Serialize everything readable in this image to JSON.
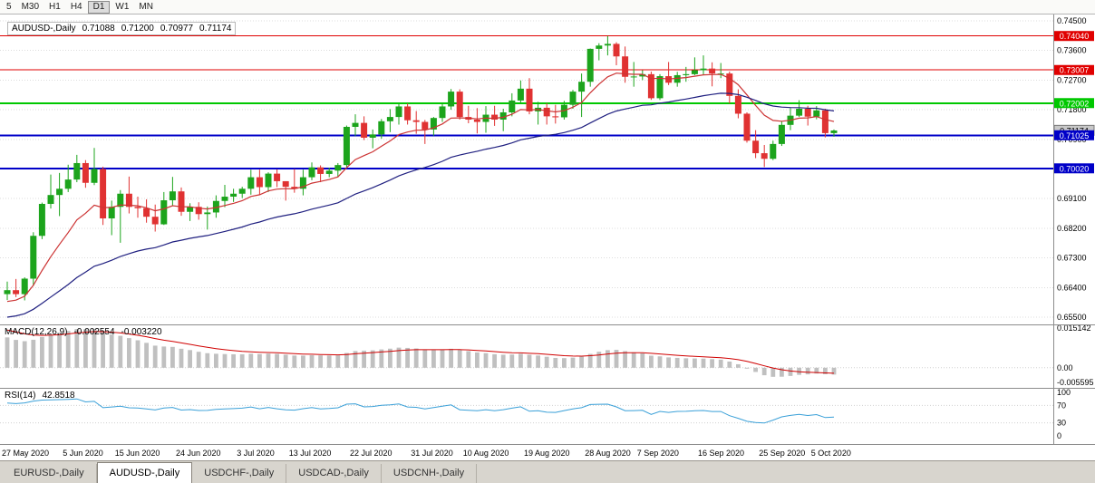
{
  "toolbar": {
    "timeframes": [
      "5",
      "M30",
      "H1",
      "H4",
      "D1",
      "W1",
      "MN"
    ],
    "active": "D1"
  },
  "chart_header": {
    "symbol": "AUDUSD-,Daily",
    "open": "0.71088",
    "high": "0.71200",
    "low": "0.70977",
    "close": "0.71174"
  },
  "price_axis": {
    "ticks": [
      {
        "label": "0.74500",
        "value": 0.745
      },
      {
        "label": "0.73600",
        "value": 0.736
      },
      {
        "label": "0.72700",
        "value": 0.727
      },
      {
        "label": "0.71800",
        "value": 0.718
      },
      {
        "label": "0.70900",
        "value": 0.709
      },
      {
        "label": "0.70000",
        "value": 0.7
      },
      {
        "label": "0.69100",
        "value": 0.691
      },
      {
        "label": "0.68200",
        "value": 0.682
      },
      {
        "label": "0.67300",
        "value": 0.673
      },
      {
        "label": "0.66400",
        "value": 0.664
      },
      {
        "label": "0.65500",
        "value": 0.655
      }
    ]
  },
  "levels": [
    {
      "label": "0.74040",
      "value": 0.7404,
      "color": "#e00000",
      "width": 1
    },
    {
      "label": "0.73007",
      "value": 0.73007,
      "color": "#e00000",
      "width": 1
    },
    {
      "label": "0.72002",
      "value": 0.72002,
      "color": "#00c800",
      "width": 2
    },
    {
      "label": "0.71025",
      "value": 0.71025,
      "color": "#0000c8",
      "width": 2
    },
    {
      "label": "0.70020",
      "value": 0.7002,
      "color": "#0000c8",
      "width": 2
    }
  ],
  "current_price": {
    "label": "0.71174",
    "value": 0.71174,
    "bg": "#c8c8c8",
    "fg": "#000000"
  },
  "indicators": {
    "macd": {
      "header": {
        "label": "MACD(12,26,9)",
        "main": "-0.002554",
        "signal": "-0.003220"
      },
      "axis": [
        {
          "label": "0.015142",
          "value": 0.015142
        },
        {
          "label": "0.00",
          "value": 0
        },
        {
          "label": "-0.005595",
          "value": -0.005595
        }
      ],
      "histogram_color": "#c0c0c0",
      "signal_color": "#d00000"
    },
    "rsi": {
      "header": {
        "label": "RSI(14)",
        "value": "42.8518"
      },
      "axis": [
        {
          "label": "100",
          "value": 100
        },
        {
          "label": "70",
          "value": 70
        },
        {
          "label": "30",
          "value": 30
        },
        {
          "label": "0",
          "value": 0
        }
      ],
      "levels": [
        70,
        30
      ],
      "line_color": "#3aa0d8"
    }
  },
  "date_axis": [
    {
      "label": "27 May 2020",
      "index": 0
    },
    {
      "label": "5 Jun 2020",
      "index": 7
    },
    {
      "label": "15 Jun 2020",
      "index": 13
    },
    {
      "label": "24 Jun 2020",
      "index": 20
    },
    {
      "label": "3 Jul 2020",
      "index": 27
    },
    {
      "label": "13 Jul 2020",
      "index": 33
    },
    {
      "label": "22 Jul 2020",
      "index": 40
    },
    {
      "label": "31 Jul 2020",
      "index": 47
    },
    {
      "label": "10 Aug 2020",
      "index": 53
    },
    {
      "label": "19 Aug 2020",
      "index": 60
    },
    {
      "label": "28 Aug 2020",
      "index": 67
    },
    {
      "label": "7 Sep 2020",
      "index": 73
    },
    {
      "label": "16 Sep 2020",
      "index": 80
    },
    {
      "label": "25 Sep 2020",
      "index": 87
    },
    {
      "label": "5 Oct 2020",
      "index": 93
    }
  ],
  "tabbar": {
    "tabs": [
      {
        "label": "EURUSD-,Daily",
        "active": false
      },
      {
        "label": "AUDUSD-,Daily",
        "active": true
      },
      {
        "label": "USDCHF-,Daily",
        "active": false
      },
      {
        "label": "USDCAD-,Daily",
        "active": false
      },
      {
        "label": "USDCNH-,Daily",
        "active": false
      }
    ]
  },
  "chart_data": {
    "type": "candlestick",
    "symbol": "AUDUSD",
    "timeframe": "Daily",
    "y_range": [
      0.6531,
      0.7469
    ],
    "up_color": "#1ca41c",
    "down_color": "#e03232",
    "ma_fast_color": "#cc3333",
    "ma_slow_color": "#202080",
    "candles": [
      [
        0.662,
        0.6658,
        0.6602,
        0.6632
      ],
      [
        0.6632,
        0.6666,
        0.6611,
        0.662
      ],
      [
        0.662,
        0.6671,
        0.6601,
        0.6667
      ],
      [
        0.6667,
        0.6808,
        0.6645,
        0.6797
      ],
      [
        0.6797,
        0.6898,
        0.6787,
        0.6894
      ],
      [
        0.6894,
        0.6983,
        0.688,
        0.6921
      ],
      [
        0.6921,
        0.6988,
        0.6857,
        0.694
      ],
      [
        0.694,
        0.7013,
        0.693,
        0.6968
      ],
      [
        0.6968,
        0.7043,
        0.696,
        0.7018
      ],
      [
        0.7018,
        0.7027,
        0.6943,
        0.6958
      ],
      [
        0.6958,
        0.7064,
        0.6951,
        0.7
      ],
      [
        0.7,
        0.7007,
        0.683,
        0.685
      ],
      [
        0.685,
        0.6904,
        0.6799,
        0.6885
      ],
      [
        0.6885,
        0.6936,
        0.6776,
        0.6925
      ],
      [
        0.6925,
        0.6977,
        0.6865,
        0.6885
      ],
      [
        0.6885,
        0.6916,
        0.6852,
        0.6881
      ],
      [
        0.6881,
        0.6908,
        0.6837,
        0.6855
      ],
      [
        0.6855,
        0.6892,
        0.681,
        0.6832
      ],
      [
        0.6832,
        0.693,
        0.683,
        0.6905
      ],
      [
        0.6905,
        0.6976,
        0.689,
        0.6932
      ],
      [
        0.6932,
        0.6944,
        0.6858,
        0.687
      ],
      [
        0.687,
        0.6896,
        0.6842,
        0.6885
      ],
      [
        0.6885,
        0.6899,
        0.6846,
        0.6863
      ],
      [
        0.6863,
        0.6886,
        0.6816,
        0.6868
      ],
      [
        0.6868,
        0.692,
        0.6852,
        0.6903
      ],
      [
        0.6903,
        0.6952,
        0.6884,
        0.6916
      ],
      [
        0.6916,
        0.694,
        0.69,
        0.6925
      ],
      [
        0.6925,
        0.6946,
        0.6912,
        0.694
      ],
      [
        0.694,
        0.6998,
        0.6922,
        0.6975
      ],
      [
        0.6975,
        0.6998,
        0.6921,
        0.6945
      ],
      [
        0.6945,
        0.699,
        0.693,
        0.6986
      ],
      [
        0.6986,
        0.6999,
        0.6945,
        0.6963
      ],
      [
        0.6963,
        0.6963,
        0.6904,
        0.6946
      ],
      [
        0.6946,
        0.7,
        0.6928,
        0.694
      ],
      [
        0.694,
        0.6998,
        0.692,
        0.6975
      ],
      [
        0.6975,
        0.702,
        0.6966,
        0.7005
      ],
      [
        0.7005,
        0.7011,
        0.696,
        0.6985
      ],
      [
        0.6985,
        0.7004,
        0.6975,
        0.6995
      ],
      [
        0.6995,
        0.7018,
        0.6975,
        0.7012
      ],
      [
        0.7012,
        0.7132,
        0.7005,
        0.7128
      ],
      [
        0.7128,
        0.7166,
        0.71,
        0.714
      ],
      [
        0.714,
        0.716,
        0.7088,
        0.7095
      ],
      [
        0.7095,
        0.712,
        0.7063,
        0.7105
      ],
      [
        0.7105,
        0.7152,
        0.7092,
        0.7145
      ],
      [
        0.7145,
        0.7182,
        0.7112,
        0.7158
      ],
      [
        0.7158,
        0.7197,
        0.7135,
        0.719
      ],
      [
        0.719,
        0.7199,
        0.7135,
        0.7148
      ],
      [
        0.7148,
        0.7176,
        0.7107,
        0.7143
      ],
      [
        0.7143,
        0.7149,
        0.7076,
        0.712
      ],
      [
        0.712,
        0.7158,
        0.7101,
        0.7155
      ],
      [
        0.7155,
        0.7199,
        0.7143,
        0.719
      ],
      [
        0.719,
        0.7243,
        0.718,
        0.7235
      ],
      [
        0.7235,
        0.7242,
        0.715,
        0.7158
      ],
      [
        0.7158,
        0.7192,
        0.7139,
        0.715
      ],
      [
        0.715,
        0.7185,
        0.7108,
        0.7143
      ],
      [
        0.7143,
        0.7191,
        0.711,
        0.7165
      ],
      [
        0.7165,
        0.7192,
        0.7131,
        0.715
      ],
      [
        0.715,
        0.7183,
        0.7115,
        0.7172
      ],
      [
        0.7172,
        0.723,
        0.716,
        0.7208
      ],
      [
        0.7208,
        0.7269,
        0.7199,
        0.7244
      ],
      [
        0.7244,
        0.7276,
        0.7166,
        0.7175
      ],
      [
        0.7175,
        0.7204,
        0.7135,
        0.7186
      ],
      [
        0.7186,
        0.72,
        0.7135,
        0.716
      ],
      [
        0.716,
        0.7195,
        0.7138,
        0.7157
      ],
      [
        0.7157,
        0.7207,
        0.715,
        0.7195
      ],
      [
        0.7195,
        0.724,
        0.7183,
        0.7235
      ],
      [
        0.7235,
        0.729,
        0.7158,
        0.7265
      ],
      [
        0.7265,
        0.7366,
        0.725,
        0.7365
      ],
      [
        0.7365,
        0.7382,
        0.733,
        0.7375
      ],
      [
        0.7375,
        0.7404,
        0.7345,
        0.738
      ],
      [
        0.738,
        0.7385,
        0.7315,
        0.7342
      ],
      [
        0.7342,
        0.7372,
        0.7262,
        0.728
      ],
      [
        0.728,
        0.7325,
        0.725,
        0.7281
      ],
      [
        0.7281,
        0.73,
        0.727,
        0.7288
      ],
      [
        0.7288,
        0.7296,
        0.721,
        0.7215
      ],
      [
        0.7215,
        0.7288,
        0.721,
        0.7282
      ],
      [
        0.7282,
        0.7325,
        0.7255,
        0.7262
      ],
      [
        0.7262,
        0.7295,
        0.725,
        0.7285
      ],
      [
        0.7285,
        0.731,
        0.7265,
        0.7288
      ],
      [
        0.7288,
        0.7339,
        0.7285,
        0.73
      ],
      [
        0.73,
        0.7345,
        0.7285,
        0.7305
      ],
      [
        0.7305,
        0.7324,
        0.7251,
        0.729
      ],
      [
        0.729,
        0.7322,
        0.7276,
        0.729
      ],
      [
        0.729,
        0.7296,
        0.7199,
        0.7222
      ],
      [
        0.7222,
        0.7242,
        0.7154,
        0.7168
      ],
      [
        0.7168,
        0.7172,
        0.708,
        0.7086
      ],
      [
        0.7086,
        0.7118,
        0.7033,
        0.7048
      ],
      [
        0.7048,
        0.7073,
        0.7006,
        0.7031
      ],
      [
        0.7031,
        0.7086,
        0.7027,
        0.7076
      ],
      [
        0.7076,
        0.7146,
        0.707,
        0.7134
      ],
      [
        0.7134,
        0.7185,
        0.7118,
        0.7162
      ],
      [
        0.7162,
        0.7209,
        0.7158,
        0.7183
      ],
      [
        0.7183,
        0.7192,
        0.7132,
        0.7159
      ],
      [
        0.7159,
        0.7191,
        0.7151,
        0.7178
      ],
      [
        0.7178,
        0.7183,
        0.7096,
        0.7109
      ],
      [
        0.7109,
        0.712,
        0.7098,
        0.7117
      ]
    ]
  }
}
